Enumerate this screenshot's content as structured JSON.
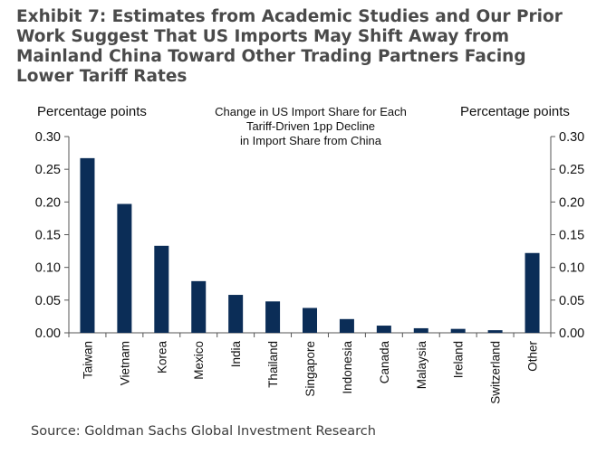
{
  "header": {
    "title": "Exhibit 7: Estimates from Academic Studies and Our Prior\nWork Suggest That US Imports May Shift Away from\nMainland China Toward Other Trading Partners Facing\nLower Tariff Rates"
  },
  "footer": {
    "source": "Source: Goldman Sachs Global Investment Research"
  },
  "chart_data": {
    "type": "bar",
    "title": "",
    "annotation": [
      "Change in US Import Share for Each",
      "Tariff-Driven  1pp Decline",
      "in Import Share from China"
    ],
    "ylabel_left": "Percentage points",
    "ylabel_right": "Percentage points",
    "xlabel": "",
    "ylim": [
      0,
      0.3
    ],
    "yticks": [
      "0.00",
      "0.05",
      "0.10",
      "0.15",
      "0.20",
      "0.25",
      "0.30"
    ],
    "categories": [
      "Taiwan",
      "Vietnam",
      "Korea",
      "Mexico",
      "India",
      "Thailand",
      "Singapore",
      "Indonesia",
      "Canada",
      "Malaysia",
      "Ireland",
      "Switzerland",
      "Other"
    ],
    "values": [
      0.267,
      0.197,
      0.133,
      0.079,
      0.058,
      0.048,
      0.038,
      0.021,
      0.011,
      0.007,
      0.006,
      0.004,
      0.122
    ],
    "bar_color": "#0b2d57",
    "grid": false,
    "legend": "none"
  }
}
